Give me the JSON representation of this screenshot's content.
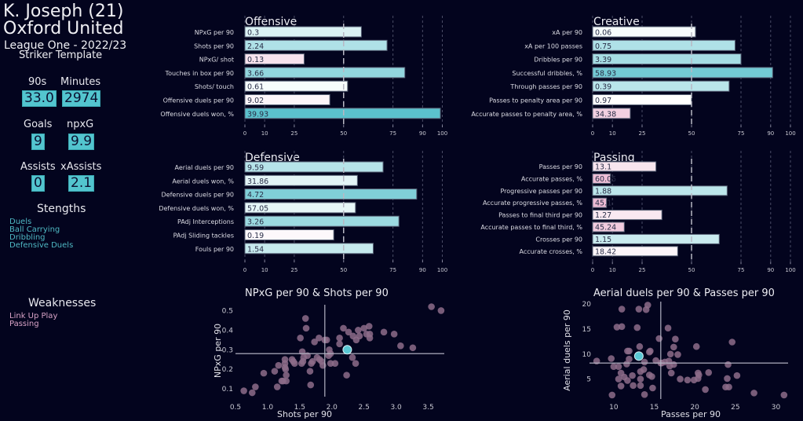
{
  "player": {
    "name": "K. Joseph (21)",
    "team": "Oxford United",
    "league": "League One - 2022/23",
    "template": "Striker Template"
  },
  "stats": [
    {
      "label": "90s",
      "value": "33.0"
    },
    {
      "label": "Minutes",
      "value": "2974"
    },
    {
      "label": "Goals",
      "value": "9"
    },
    {
      "label": "npxG",
      "value": "9.9"
    },
    {
      "label": "Assists",
      "value": "0"
    },
    {
      "label": "xAssists",
      "value": "2.1"
    }
  ],
  "strengths": {
    "title": "Stengths",
    "items": [
      "Duels",
      "Ball Carrying",
      "Dribbling",
      "Defensive Duels"
    ]
  },
  "weaknesses": {
    "title": "Weaknesses",
    "items": [
      "Link Up Play",
      "Passing"
    ]
  },
  "colors": {
    "background": "#03041e",
    "accent": "#53c5cf",
    "weak": "#e7a8c8",
    "scatter_point": "#8a6a86",
    "highlight_point": "#5ac8d4"
  },
  "chart_data": [
    {
      "type": "bar",
      "title": "Offensive",
      "orientation": "horizontal",
      "value_kind": "percentile",
      "xlim": [
        0,
        100
      ],
      "xticks": [
        0,
        10,
        25,
        50,
        75,
        90,
        100
      ],
      "reference_line": 50,
      "categories": [
        "NPxG per 90",
        "Shots per 90",
        "NPxG/ shot",
        "Touches in box per 90",
        "Shots/ touch",
        "Offensive duels per 90",
        "Offensive duels won, %"
      ],
      "labels": [
        "0.3",
        "2.24",
        "0.13",
        "3.66",
        "0.61",
        "9.02",
        "39.93"
      ],
      "values": [
        59,
        72,
        30,
        81,
        52,
        43,
        99
      ]
    },
    {
      "type": "bar",
      "title": "Creative",
      "orientation": "horizontal",
      "value_kind": "percentile",
      "xlim": [
        0,
        100
      ],
      "xticks": [
        0,
        10,
        25,
        50,
        75,
        90,
        100
      ],
      "reference_line": 50,
      "categories": [
        "xA per 90",
        "xA per 100 passes",
        "Dribbles per 90",
        "Successful dribbles, %",
        "Through passes per 90",
        "Passes to penalty area per 90",
        "Accurate passes to penalty area, %"
      ],
      "labels": [
        "0.06",
        "0.75",
        "3.39",
        "58.93",
        "0.39",
        "0.97",
        "34.38"
      ],
      "values": [
        52,
        72,
        75,
        91,
        69,
        50,
        19
      ]
    },
    {
      "type": "bar",
      "title": "Defensive",
      "orientation": "horizontal",
      "value_kind": "percentile",
      "xlim": [
        0,
        100
      ],
      "xticks": [
        0,
        10,
        25,
        50,
        75,
        90,
        100
      ],
      "reference_line": 50,
      "categories": [
        "Aerial duels per 90",
        "Aerial duels won, %",
        "Defensive duels per 90",
        "Defensive duels won, %",
        "PAdj Interceptions",
        "PAdj Sliding tackles",
        "Fouls per 90"
      ],
      "labels": [
        "9.59",
        "31.86",
        "4.72",
        "57.05",
        "3.26",
        "0.19",
        "1.54"
      ],
      "values": [
        70,
        57,
        87,
        56,
        78,
        45,
        65
      ]
    },
    {
      "type": "bar",
      "title": "Passing",
      "orientation": "horizontal",
      "value_kind": "percentile",
      "xlim": [
        0,
        100
      ],
      "xticks": [
        0,
        10,
        25,
        50,
        75,
        90,
        100
      ],
      "reference_line": 50,
      "categories": [
        "Passes per 90",
        "Accurate passes, %",
        "Progressive passes per 90",
        "Accurate progressive passes, %",
        "Passes to final third per 90",
        "Accurate passes to final third, %",
        "Crosses per 90",
        "Accurate crosses, %"
      ],
      "labels": [
        "13.1",
        "60.05",
        "1.88",
        "45.1",
        "1.27",
        "45.24",
        "1.15",
        "18.42"
      ],
      "values": [
        32,
        9,
        68,
        7,
        35,
        16,
        64,
        43
      ]
    },
    {
      "type": "scatter",
      "title": "NPxG per 90 & Shots per 90",
      "xlabel": "Shots per 90",
      "ylabel": "NPxG per 90",
      "xlim": [
        0.5,
        3.75
      ],
      "ylim": [
        0.06,
        0.53
      ],
      "xticks": [
        0.5,
        1.0,
        1.5,
        2.0,
        2.5,
        3.0,
        3.5
      ],
      "yticks": [
        0.1,
        0.2,
        0.3,
        0.4,
        0.5
      ],
      "mean_x": 1.89,
      "mean_y": 0.28,
      "highlight": {
        "x": 2.24,
        "y": 0.3
      },
      "points": [
        [
          0.63,
          0.09
        ],
        [
          0.76,
          0.08
        ],
        [
          0.81,
          0.11
        ],
        [
          0.94,
          0.18
        ],
        [
          1.11,
          0.19
        ],
        [
          1.15,
          0.11
        ],
        [
          1.17,
          0.22
        ],
        [
          1.22,
          0.14
        ],
        [
          1.24,
          0.14
        ],
        [
          1.27,
          0.25
        ],
        [
          1.27,
          0.23
        ],
        [
          1.27,
          0.21
        ],
        [
          1.28,
          0.2
        ],
        [
          1.29,
          0.17
        ],
        [
          1.29,
          0.14
        ],
        [
          1.38,
          0.25
        ],
        [
          1.4,
          0.24
        ],
        [
          1.42,
          0.23
        ],
        [
          1.51,
          0.36
        ],
        [
          1.53,
          0.23
        ],
        [
          1.54,
          0.29
        ],
        [
          1.55,
          0.24
        ],
        [
          1.56,
          0.26
        ],
        [
          1.59,
          0.46
        ],
        [
          1.6,
          0.41
        ],
        [
          1.62,
          0.27
        ],
        [
          1.66,
          0.19
        ],
        [
          1.67,
          0.12
        ],
        [
          1.68,
          0.23
        ],
        [
          1.7,
          0.24
        ],
        [
          1.73,
          0.34
        ],
        [
          1.77,
          0.26
        ],
        [
          1.8,
          0.36
        ],
        [
          1.81,
          0.25
        ],
        [
          1.84,
          0.24
        ],
        [
          1.86,
          0.22
        ],
        [
          1.89,
          0.35
        ],
        [
          1.92,
          0.35
        ],
        [
          1.95,
          0.27
        ],
        [
          1.96,
          0.3
        ],
        [
          1.98,
          0.28
        ],
        [
          1.98,
          0.23
        ],
        [
          2.05,
          0.23
        ],
        [
          2.12,
          0.36
        ],
        [
          2.12,
          0.33
        ],
        [
          2.18,
          0.41
        ],
        [
          2.23,
          0.17
        ],
        [
          2.26,
          0.39
        ],
        [
          2.32,
          0.26
        ],
        [
          2.33,
          0.37
        ],
        [
          2.37,
          0.23
        ],
        [
          2.38,
          0.35
        ],
        [
          2.41,
          0.4
        ],
        [
          2.43,
          0.37
        ],
        [
          2.5,
          0.41
        ],
        [
          2.54,
          0.38
        ],
        [
          2.58,
          0.42
        ],
        [
          2.59,
          0.36
        ],
        [
          2.59,
          0.38
        ],
        [
          2.81,
          0.39
        ],
        [
          2.97,
          0.38
        ],
        [
          3.07,
          0.32
        ],
        [
          3.26,
          0.31
        ],
        [
          3.55,
          0.52
        ],
        [
          3.7,
          0.5
        ]
      ]
    },
    {
      "type": "scatter",
      "title": "Aerial duels per 90 & Passes per 90",
      "xlabel": "Passes per 90",
      "ylabel": "Aerial duels per 90",
      "xlim": [
        7.5,
        31.5
      ],
      "ylim": [
        1.0,
        20.5
      ],
      "xticks": [
        10,
        15,
        20,
        25,
        30
      ],
      "yticks": [
        5,
        10,
        15,
        20
      ],
      "mean_x": 15.8,
      "mean_y": 8.2,
      "highlight": {
        "x": 13.1,
        "y": 9.6
      },
      "points": [
        [
          7.9,
          8.6
        ],
        [
          9.7,
          9.1
        ],
        [
          9.8,
          1.8
        ],
        [
          10.0,
          7.5
        ],
        [
          10.6,
          7.5
        ],
        [
          10.6,
          5.0
        ],
        [
          10.4,
          15.4
        ],
        [
          10.9,
          6.2
        ],
        [
          10.9,
          3.6
        ],
        [
          11.0,
          15.5
        ],
        [
          11.0,
          19.0
        ],
        [
          11.3,
          5.4
        ],
        [
          11.6,
          8.0
        ],
        [
          11.7,
          4.7
        ],
        [
          11.7,
          10.6
        ],
        [
          11.9,
          10.6
        ],
        [
          11.9,
          9.0
        ],
        [
          12.3,
          5.7
        ],
        [
          12.4,
          3.7
        ],
        [
          12.9,
          15.3
        ],
        [
          13.1,
          19.0
        ],
        [
          13.2,
          11.5
        ],
        [
          13.3,
          6.5
        ],
        [
          13.3,
          5.0
        ],
        [
          13.3,
          3.7
        ],
        [
          13.7,
          6.9
        ],
        [
          13.8,
          8.4
        ],
        [
          13.8,
          1.9
        ],
        [
          14.0,
          18.9
        ],
        [
          14.2,
          19.8
        ],
        [
          14.4,
          10.4
        ],
        [
          14.4,
          5.8
        ],
        [
          14.5,
          10.6
        ],
        [
          14.7,
          5.5
        ],
        [
          14.8,
          3.2
        ],
        [
          15.2,
          8.7
        ],
        [
          15.6,
          13.1
        ],
        [
          15.8,
          8.2
        ],
        [
          15.9,
          8.2
        ],
        [
          16.3,
          8.4
        ],
        [
          16.7,
          15.2
        ],
        [
          16.8,
          8.6
        ],
        [
          16.9,
          7.6
        ],
        [
          17.0,
          10.0
        ],
        [
          17.1,
          6.2
        ],
        [
          17.4,
          7.9
        ],
        [
          17.4,
          11.4
        ],
        [
          17.6,
          13.0
        ],
        [
          17.9,
          9.9
        ],
        [
          18.2,
          5.0
        ],
        [
          19.1,
          4.8
        ],
        [
          19.9,
          4.8
        ],
        [
          20.2,
          11.5
        ],
        [
          20.4,
          6.2
        ],
        [
          20.5,
          5.8
        ],
        [
          20.4,
          5.1
        ],
        [
          21.3,
          2.9
        ],
        [
          21.7,
          6.3
        ],
        [
          23.8,
          3.4
        ],
        [
          24.0,
          5.1
        ],
        [
          24.2,
          3.4
        ],
        [
          24.1,
          7.9
        ],
        [
          24.6,
          12.4
        ],
        [
          25.2,
          5.7
        ],
        [
          27.3,
          2.2
        ],
        [
          31.0,
          1.8
        ]
      ]
    }
  ]
}
